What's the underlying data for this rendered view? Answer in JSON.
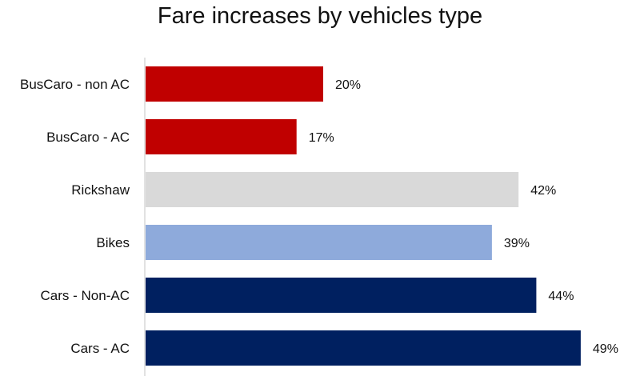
{
  "chart_data": {
    "type": "bar",
    "orientation": "horizontal",
    "title": "Fare increases by vehicles type",
    "xlabel": "",
    "ylabel": "",
    "categories": [
      "BusCaro - non AC",
      "BusCaro - AC",
      "Rickshaw",
      "Bikes",
      "Cars - Non-AC",
      "Cars - AC"
    ],
    "values": [
      20,
      17,
      42,
      39,
      44,
      49
    ],
    "value_labels": [
      "20%",
      "17%",
      "42%",
      "39%",
      "44%",
      "49%"
    ],
    "bar_colors": [
      "#c00000",
      "#c00000",
      "#d9d9d9",
      "#8eaadb",
      "#002060",
      "#002060"
    ],
    "xlim": [
      0,
      50
    ],
    "grid": false,
    "legend": "none",
    "axis_color": "#d9d9d9"
  }
}
